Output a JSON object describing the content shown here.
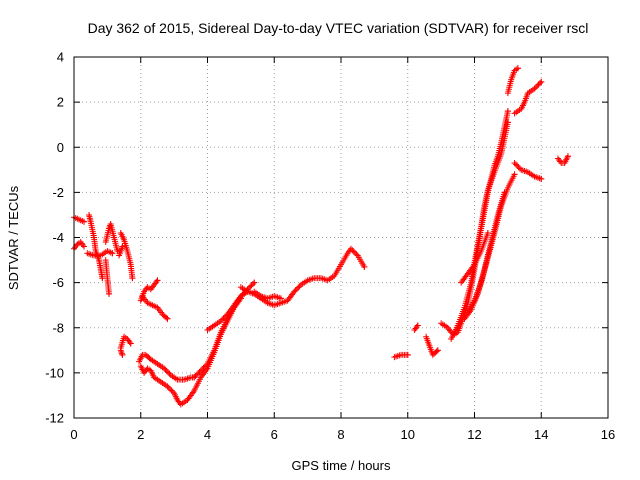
{
  "chart_data": {
    "type": "scatter",
    "title": "Day 362 of 2015, Sidereal Day-to-day VTEC variation (SDTVAR) for receiver rscl",
    "xlabel": "GPS time / hours",
    "ylabel": "SDTVAR / TECUs",
    "xlim": [
      0,
      16
    ],
    "ylim": [
      -12,
      4
    ],
    "xticks": [
      0,
      2,
      4,
      6,
      8,
      10,
      12,
      14,
      16
    ],
    "yticks": [
      -12,
      -10,
      -8,
      -6,
      -4,
      -2,
      0,
      2,
      4
    ],
    "grid": true,
    "marker": "+",
    "color": "#ff0000",
    "segments": [
      [
        [
          0.0,
          -3.1
        ],
        [
          0.15,
          -3.2
        ],
        [
          0.3,
          -3.3
        ]
      ],
      [
        [
          0.0,
          -4.5
        ],
        [
          0.1,
          -4.3
        ],
        [
          0.2,
          -4.2
        ],
        [
          0.3,
          -4.4
        ]
      ],
      [
        [
          0.45,
          -3.0
        ],
        [
          0.5,
          -3.3
        ],
        [
          0.6,
          -4.0
        ],
        [
          0.65,
          -4.6
        ],
        [
          0.75,
          -5.0
        ],
        [
          0.8,
          -5.4
        ],
        [
          0.85,
          -5.8
        ]
      ],
      [
        [
          0.4,
          -4.7
        ],
        [
          0.6,
          -4.8
        ],
        [
          0.8,
          -4.8
        ],
        [
          1.0,
          -4.6
        ],
        [
          1.15,
          -4.7
        ]
      ],
      [
        [
          0.95,
          -4.2
        ],
        [
          1.05,
          -3.6
        ],
        [
          1.1,
          -3.4
        ],
        [
          1.2,
          -4.0
        ],
        [
          1.3,
          -4.6
        ]
      ],
      [
        [
          0.95,
          -5.0
        ],
        [
          1.0,
          -5.8
        ],
        [
          1.05,
          -6.5
        ]
      ],
      [
        [
          1.4,
          -3.8
        ],
        [
          1.5,
          -4.1
        ],
        [
          1.6,
          -4.6
        ],
        [
          1.7,
          -5.2
        ],
        [
          1.75,
          -5.8
        ]
      ],
      [
        [
          1.35,
          -4.8
        ],
        [
          1.45,
          -4.4
        ]
      ],
      [
        [
          1.4,
          -8.9
        ],
        [
          1.5,
          -8.4
        ],
        [
          1.6,
          -8.5
        ],
        [
          1.7,
          -8.7
        ]
      ],
      [
        [
          1.4,
          -9.0
        ],
        [
          1.45,
          -9.2
        ]
      ],
      [
        [
          2.0,
          -6.8
        ],
        [
          2.1,
          -6.4
        ],
        [
          2.2,
          -6.2
        ],
        [
          2.3,
          -6.3
        ],
        [
          2.4,
          -6.1
        ],
        [
          2.5,
          -5.9
        ]
      ],
      [
        [
          2.05,
          -6.6
        ],
        [
          2.2,
          -6.9
        ],
        [
          2.35,
          -7.0
        ],
        [
          2.5,
          -7.1
        ],
        [
          2.65,
          -7.4
        ],
        [
          2.8,
          -7.6
        ]
      ],
      [
        [
          1.95,
          -9.5
        ],
        [
          2.05,
          -9.2
        ],
        [
          2.15,
          -9.2
        ],
        [
          2.3,
          -9.4
        ],
        [
          2.5,
          -9.6
        ],
        [
          2.7,
          -9.8
        ],
        [
          2.9,
          -10.1
        ],
        [
          3.1,
          -10.3
        ],
        [
          3.3,
          -10.3
        ],
        [
          3.5,
          -10.2
        ],
        [
          3.6,
          -10.2
        ]
      ],
      [
        [
          2.0,
          -9.7
        ],
        [
          2.1,
          -10.0
        ],
        [
          2.2,
          -9.8
        ],
        [
          2.3,
          -9.9
        ],
        [
          2.4,
          -10.2
        ],
        [
          2.6,
          -10.4
        ],
        [
          2.8,
          -10.6
        ],
        [
          3.0,
          -10.9
        ],
        [
          3.1,
          -11.2
        ],
        [
          3.2,
          -11.4
        ],
        [
          3.4,
          -11.2
        ],
        [
          3.6,
          -10.8
        ],
        [
          3.8,
          -10.2
        ],
        [
          4.0,
          -9.8
        ],
        [
          4.2,
          -9.1
        ],
        [
          4.4,
          -8.3
        ],
        [
          4.6,
          -7.7
        ],
        [
          4.8,
          -7.1
        ],
        [
          5.0,
          -6.6
        ],
        [
          5.2,
          -6.3
        ],
        [
          5.4,
          -6.0
        ]
      ],
      [
        [
          3.6,
          -10.2
        ],
        [
          3.8,
          -9.9
        ],
        [
          4.0,
          -9.6
        ],
        [
          4.2,
          -9.0
        ],
        [
          4.4,
          -8.2
        ],
        [
          4.6,
          -7.6
        ],
        [
          4.8,
          -7.1
        ],
        [
          5.0,
          -6.7
        ]
      ],
      [
        [
          4.0,
          -8.1
        ],
        [
          4.2,
          -7.9
        ],
        [
          4.4,
          -7.7
        ],
        [
          4.6,
          -7.4
        ],
        [
          4.8,
          -7.0
        ],
        [
          5.0,
          -6.6
        ],
        [
          5.2,
          -6.4
        ]
      ],
      [
        [
          5.0,
          -6.2
        ],
        [
          5.2,
          -6.4
        ],
        [
          5.4,
          -6.5
        ],
        [
          5.6,
          -6.7
        ],
        [
          5.8,
          -6.9
        ],
        [
          6.0,
          -7.0
        ],
        [
          6.2,
          -6.9
        ],
        [
          6.4,
          -6.8
        ],
        [
          6.6,
          -6.4
        ],
        [
          6.8,
          -6.1
        ],
        [
          7.0,
          -5.9
        ],
        [
          7.2,
          -5.8
        ],
        [
          7.4,
          -5.8
        ],
        [
          7.6,
          -5.9
        ],
        [
          7.8,
          -5.7
        ],
        [
          8.0,
          -5.2
        ],
        [
          8.2,
          -4.7
        ],
        [
          8.3,
          -4.5
        ],
        [
          8.5,
          -4.8
        ],
        [
          8.7,
          -5.3
        ]
      ],
      [
        [
          5.4,
          -6.4
        ],
        [
          5.6,
          -6.6
        ],
        [
          5.8,
          -6.7
        ],
        [
          6.0,
          -6.6
        ],
        [
          6.2,
          -6.7
        ]
      ],
      [
        [
          9.6,
          -9.3
        ],
        [
          9.8,
          -9.2
        ],
        [
          10.0,
          -9.2
        ]
      ],
      [
        [
          10.2,
          -8.1
        ],
        [
          10.3,
          -7.9
        ]
      ],
      [
        [
          10.55,
          -8.4
        ],
        [
          10.65,
          -8.8
        ],
        [
          10.75,
          -9.2
        ],
        [
          10.9,
          -9.0
        ]
      ],
      [
        [
          11.0,
          -7.8
        ],
        [
          11.2,
          -8.0
        ],
        [
          11.3,
          -8.2
        ],
        [
          11.4,
          -8.3
        ],
        [
          11.5,
          -8.2
        ],
        [
          11.6,
          -7.8
        ],
        [
          11.7,
          -7.4
        ],
        [
          11.8,
          -6.9
        ],
        [
          11.9,
          -6.2
        ],
        [
          12.0,
          -5.4
        ],
        [
          12.1,
          -4.5
        ],
        [
          12.2,
          -3.6
        ],
        [
          12.3,
          -2.8
        ],
        [
          12.4,
          -2.0
        ],
        [
          12.5,
          -1.4
        ],
        [
          12.6,
          -0.8
        ],
        [
          12.7,
          -0.4
        ],
        [
          12.8,
          0.2
        ],
        [
          12.9,
          0.9
        ],
        [
          13.0,
          1.6
        ]
      ],
      [
        [
          11.3,
          -8.5
        ],
        [
          11.5,
          -7.9
        ],
        [
          11.7,
          -7.1
        ],
        [
          11.9,
          -6.0
        ],
        [
          12.0,
          -5.1
        ],
        [
          12.1,
          -4.3
        ],
        [
          12.2,
          -3.5
        ],
        [
          12.3,
          -2.6
        ],
        [
          12.4,
          -1.9
        ],
        [
          12.6,
          -1.1
        ],
        [
          12.8,
          -0.3
        ],
        [
          12.9,
          0.4
        ],
        [
          13.0,
          1.1
        ]
      ],
      [
        [
          11.6,
          -6.0
        ],
        [
          11.8,
          -5.6
        ],
        [
          12.0,
          -5.2
        ],
        [
          12.2,
          -4.6
        ],
        [
          12.4,
          -3.8
        ]
      ],
      [
        [
          11.8,
          -7.3
        ],
        [
          12.0,
          -6.8
        ],
        [
          12.2,
          -6.0
        ],
        [
          12.4,
          -4.9
        ],
        [
          12.6,
          -3.8
        ],
        [
          12.8,
          -2.6
        ],
        [
          13.0,
          -1.8
        ],
        [
          13.2,
          -1.2
        ]
      ],
      [
        [
          11.7,
          -7.6
        ],
        [
          11.9,
          -7.2
        ],
        [
          12.1,
          -6.5
        ],
        [
          12.3,
          -5.4
        ],
        [
          12.5,
          -4.2
        ],
        [
          12.7,
          -3.0
        ],
        [
          12.9,
          -2.0
        ]
      ],
      [
        [
          13.0,
          2.4
        ],
        [
          13.1,
          3.0
        ],
        [
          13.2,
          3.4
        ],
        [
          13.3,
          3.5
        ]
      ],
      [
        [
          13.2,
          1.5
        ],
        [
          13.4,
          1.7
        ],
        [
          13.5,
          2.0
        ],
        [
          13.6,
          2.4
        ],
        [
          13.8,
          2.6
        ],
        [
          14.0,
          2.9
        ]
      ],
      [
        [
          13.2,
          -0.7
        ],
        [
          13.4,
          -1.0
        ],
        [
          13.6,
          -1.1
        ],
        [
          13.8,
          -1.3
        ],
        [
          14.0,
          -1.4
        ]
      ],
      [
        [
          14.5,
          -0.5
        ],
        [
          14.6,
          -0.7
        ],
        [
          14.7,
          -0.7
        ],
        [
          14.8,
          -0.4
        ]
      ]
    ]
  }
}
